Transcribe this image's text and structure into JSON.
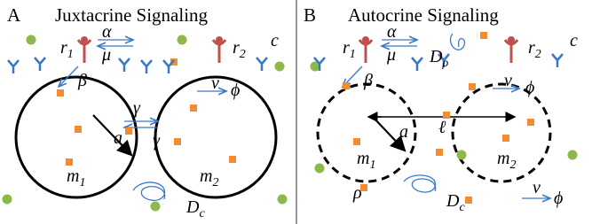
{
  "panel_a": {
    "letter": "A",
    "title": "Juxtacrine Signaling",
    "labels": [
      {
        "t": "r",
        "s": "1"
      },
      {
        "t": "α"
      },
      {
        "t": "μ"
      },
      {
        "t": "r",
        "s": "2"
      },
      {
        "t": "c"
      },
      {
        "t": "β"
      },
      {
        "t": "ν"
      },
      {
        "t": "ϕ"
      },
      {
        "t": "γ"
      },
      {
        "t": "γ"
      },
      {
        "t": "a"
      },
      {
        "t": "m",
        "s": "1"
      },
      {
        "t": "m",
        "s": "2"
      },
      {
        "t": "D",
        "s": "c"
      }
    ]
  },
  "panel_b": {
    "letter": "B",
    "title": "Autocrine Signaling",
    "labels": [
      {
        "t": "r",
        "s": "1"
      },
      {
        "t": "α"
      },
      {
        "t": "μ"
      },
      {
        "t": "D",
        "s": "ρ"
      },
      {
        "t": "r",
        "s": "2"
      },
      {
        "t": "c"
      },
      {
        "t": "β"
      },
      {
        "t": "ν"
      },
      {
        "t": "ϕ"
      },
      {
        "t": "a"
      },
      {
        "t": "ℓ"
      },
      {
        "t": "m",
        "s": "1"
      },
      {
        "t": "m",
        "s": "2"
      },
      {
        "t": "ρ"
      },
      {
        "t": "D",
        "s": "c"
      },
      {
        "t": "ν"
      },
      {
        "t": "ϕ"
      }
    ]
  }
}
